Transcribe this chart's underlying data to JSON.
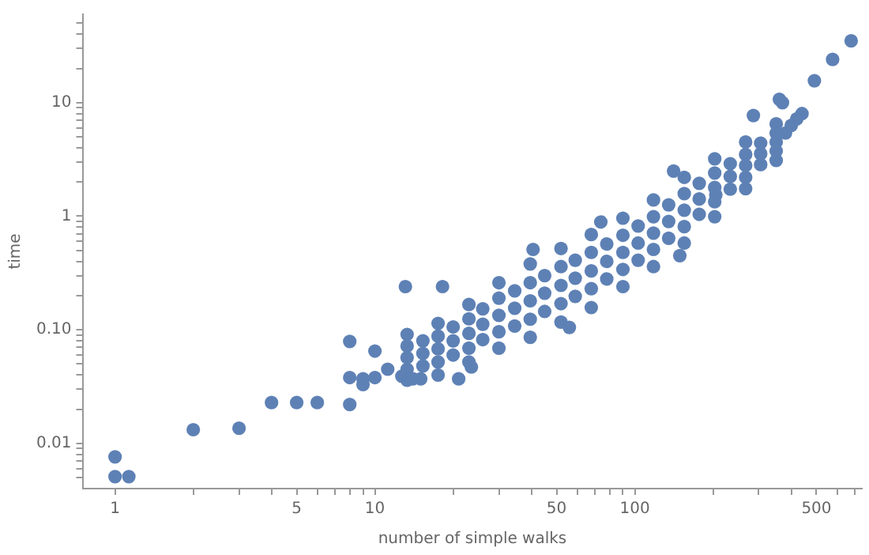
{
  "chart_data": {
    "type": "scatter",
    "xlabel": "number of simple walks",
    "ylabel": "time",
    "log": "xy",
    "grid": false,
    "legend": false,
    "marker": "circle",
    "xlim": [
      0.75,
      750
    ],
    "ylim": [
      0.004,
      60
    ],
    "xticks": [
      1,
      {
        "value": 2,
        "label": null
      },
      {
        "value": 3,
        "label": null
      },
      {
        "value": 4,
        "label": null
      },
      5,
      {
        "value": 6,
        "label": null
      },
      {
        "value": 7,
        "label": null
      },
      {
        "value": 8,
        "label": null
      },
      {
        "value": 9,
        "label": null
      },
      10,
      {
        "value": 20,
        "label": null
      },
      {
        "value": 30,
        "label": null
      },
      {
        "value": 40,
        "label": null
      },
      50,
      {
        "value": 60,
        "label": null
      },
      {
        "value": 70,
        "label": null
      },
      {
        "value": 80,
        "label": null
      },
      {
        "value": 90,
        "label": null
      },
      100,
      {
        "value": 200,
        "label": null
      },
      {
        "value": 300,
        "label": null
      },
      {
        "value": 400,
        "label": null
      },
      500,
      {
        "value": 600,
        "label": null
      },
      {
        "value": 700,
        "label": null
      }
    ],
    "yticks": [
      {
        "value": 0.005,
        "label": null
      },
      {
        "value": 0.006,
        "label": null
      },
      {
        "value": 0.007,
        "label": null
      },
      {
        "value": 0.008,
        "label": null
      },
      {
        "value": 0.009,
        "label": null
      },
      0.01,
      {
        "value": 0.02,
        "label": null
      },
      {
        "value": 0.03,
        "label": null
      },
      {
        "value": 0.04,
        "label": null
      },
      {
        "value": 0.05,
        "label": null
      },
      {
        "value": 0.06,
        "label": null
      },
      {
        "value": 0.07,
        "label": null
      },
      {
        "value": 0.08,
        "label": null
      },
      {
        "value": 0.09,
        "label": null
      },
      {
        "value": 0.1,
        "label": "0.10"
      },
      {
        "value": 0.2,
        "label": null
      },
      {
        "value": 0.3,
        "label": null
      },
      {
        "value": 0.4,
        "label": null
      },
      {
        "value": 0.5,
        "label": null
      },
      {
        "value": 0.6,
        "label": null
      },
      {
        "value": 0.7,
        "label": null
      },
      {
        "value": 0.8,
        "label": null
      },
      {
        "value": 0.9,
        "label": null
      },
      1,
      {
        "value": 2,
        "label": null
      },
      {
        "value": 3,
        "label": null
      },
      {
        "value": 4,
        "label": null
      },
      {
        "value": 5,
        "label": null
      },
      {
        "value": 6,
        "label": null
      },
      {
        "value": 7,
        "label": null
      },
      {
        "value": 8,
        "label": null
      },
      {
        "value": 9,
        "label": null
      },
      10,
      {
        "value": 20,
        "label": null
      },
      {
        "value": 30,
        "label": null
      },
      {
        "value": 40,
        "label": null
      },
      {
        "value": 50,
        "label": null
      }
    ],
    "series": [
      {
        "color": "#5e81b5",
        "x": [
          1,
          1,
          1.13,
          2,
          3,
          4,
          5,
          6,
          8,
          8,
          8,
          9,
          9,
          10,
          10,
          11.2,
          12.7,
          13.1,
          18.2,
          14,
          15,
          21,
          23.5,
          40.6,
          74,
          141,
          205,
          149,
          56,
          680,
          577,
          491,
          360,
          370,
          286,
          13.3,
          13.3,
          13.3,
          13.3,
          13.3,
          17.5,
          17.5,
          17.5,
          17.5,
          17.5,
          23,
          23,
          23,
          23,
          23,
          30,
          30,
          30,
          30,
          30,
          39.6,
          39.6,
          39.6,
          39.6,
          39.6,
          52,
          52,
          52,
          52,
          52,
          68,
          68,
          68,
          68,
          68,
          90,
          90,
          90,
          90,
          90,
          118,
          118,
          118,
          118,
          118,
          155,
          155,
          155,
          155,
          155,
          203,
          203,
          203,
          203,
          203,
          267,
          267,
          267,
          267,
          267,
          350,
          350,
          350,
          350,
          350,
          15.3,
          15.3,
          15.3,
          20,
          20,
          20,
          26,
          26,
          26,
          34.5,
          34.5,
          34.5,
          45,
          45,
          45,
          59,
          59,
          59,
          78,
          78,
          78,
          103,
          103,
          103,
          135,
          135,
          135,
          177,
          177,
          177,
          233,
          233,
          233,
          305,
          305,
          305,
          380,
          400,
          420,
          440
        ],
        "values": [
          0.0076,
          0.0051,
          0.0051,
          0.0132,
          0.0136,
          0.0229,
          0.0229,
          0.0229,
          0.022,
          0.038,
          0.079,
          0.037,
          0.033,
          0.038,
          0.065,
          0.045,
          0.039,
          0.24,
          0.24,
          0.037,
          0.037,
          0.037,
          0.047,
          0.51,
          0.89,
          2.5,
          1.54,
          0.45,
          0.105,
          35,
          24,
          15.6,
          10.7,
          10,
          7.7,
          0.091,
          0.072,
          0.057,
          0.045,
          0.036,
          0.114,
          0.088,
          0.068,
          0.052,
          0.04,
          0.167,
          0.125,
          0.093,
          0.069,
          0.052,
          0.26,
          0.19,
          0.134,
          0.096,
          0.069,
          0.38,
          0.26,
          0.18,
          0.124,
          0.086,
          0.52,
          0.36,
          0.246,
          0.17,
          0.117,
          0.69,
          0.48,
          0.33,
          0.23,
          0.157,
          0.96,
          0.68,
          0.48,
          0.34,
          0.24,
          1.39,
          0.99,
          0.71,
          0.51,
          0.36,
          2.2,
          1.58,
          1.13,
          0.81,
          0.58,
          3.2,
          2.4,
          1.79,
          1.34,
          0.99,
          4.5,
          3.5,
          2.8,
          2.2,
          1.75,
          6.5,
          5.4,
          4.5,
          3.75,
          3.1,
          0.08,
          0.062,
          0.048,
          0.106,
          0.08,
          0.06,
          0.153,
          0.112,
          0.082,
          0.22,
          0.155,
          0.108,
          0.3,
          0.21,
          0.145,
          0.41,
          0.285,
          0.197,
          0.57,
          0.4,
          0.28,
          0.82,
          0.58,
          0.41,
          1.26,
          0.9,
          0.64,
          1.95,
          1.42,
          1.04,
          2.9,
          2.24,
          1.73,
          4.4,
          3.55,
          2.85,
          5.4,
          6.3,
          7.2,
          8
        ]
      }
    ]
  }
}
